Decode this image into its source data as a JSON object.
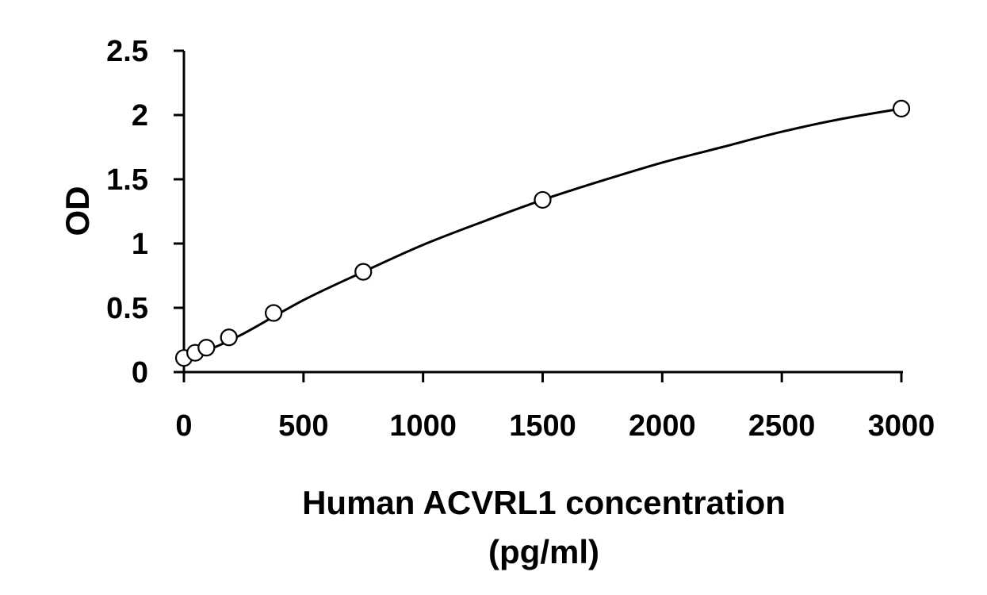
{
  "chart_data": {
    "type": "scatter",
    "xlabel_line1": "Human ACVRL1 concentration",
    "xlabel_line2": "(pg/ml)",
    "ylabel": "OD",
    "xlim": [
      0,
      3000
    ],
    "ylim": [
      0,
      2.5
    ],
    "xticks": [
      0,
      500,
      1000,
      1500,
      2000,
      2500,
      3000
    ],
    "yticks": [
      0,
      0.5,
      1,
      1.5,
      2,
      2.5
    ],
    "ytick_labels": [
      "0",
      "0.5",
      "1",
      "1.5",
      "2",
      "2.5"
    ],
    "grid": false,
    "legend": false,
    "series": [
      {
        "x": [
          0,
          47,
          94,
          188,
          375,
          750,
          1500,
          3000
        ],
        "y": [
          0.11,
          0.15,
          0.19,
          0.27,
          0.46,
          0.78,
          1.34,
          2.05
        ]
      }
    ],
    "fit_curve": {
      "type": "smooth",
      "x": [
        0,
        100,
        250,
        500,
        750,
        1000,
        1250,
        1500,
        1750,
        2000,
        2250,
        2500,
        2750,
        3000
      ],
      "y": [
        0.1,
        0.17,
        0.3,
        0.56,
        0.78,
        0.99,
        1.17,
        1.34,
        1.49,
        1.63,
        1.75,
        1.87,
        1.97,
        2.05
      ]
    }
  }
}
